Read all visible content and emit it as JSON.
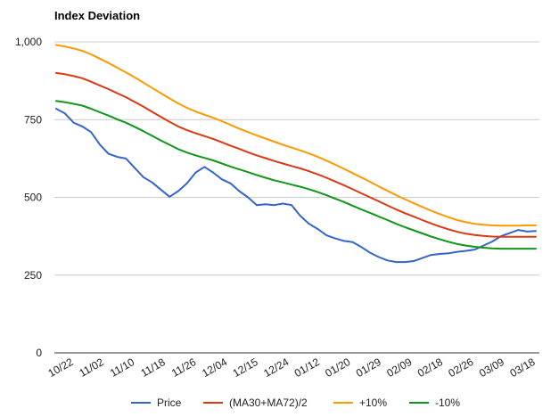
{
  "chart_data": {
    "type": "line",
    "title": "Index Deviation",
    "xlabel": "",
    "ylabel": "",
    "ylim": [
      0,
      1000
    ],
    "y_ticks": [
      "0",
      "250",
      "500",
      "750",
      "1,000"
    ],
    "y_tick_values": [
      0,
      250,
      500,
      750,
      1000
    ],
    "grid": true,
    "legend_position": "bottom",
    "x_tick_labels": [
      "10/22",
      "11/02",
      "11/10",
      "11/18",
      "11/26",
      "12/04",
      "12/15",
      "12/24",
      "01/12",
      "01/20",
      "01/29",
      "02/09",
      "02/18",
      "02/26",
      "03/09",
      "03/18"
    ],
    "series": [
      {
        "name": "Price",
        "color": "#3366cc",
        "values": [
          785,
          770,
          740,
          728,
          710,
          670,
          640,
          630,
          625,
          595,
          565,
          548,
          525,
          502,
          520,
          545,
          580,
          598,
          580,
          558,
          545,
          520,
          500,
          475,
          478,
          475,
          480,
          475,
          440,
          415,
          398,
          378,
          368,
          360,
          356,
          340,
          322,
          308,
          297,
          292,
          292,
          295,
          305,
          315,
          318,
          320,
          325,
          328,
          332,
          345,
          358,
          375,
          385,
          395,
          390,
          392
        ]
      },
      {
        "name": "(MA30+MA72)/2",
        "color": "#dc3912",
        "values": [
          900,
          896,
          890,
          883,
          872,
          860,
          848,
          835,
          822,
          807,
          792,
          775,
          759,
          743,
          728,
          716,
          706,
          697,
          688,
          677,
          666,
          656,
          645,
          635,
          626,
          617,
          609,
          601,
          593,
          584,
          574,
          563,
          551,
          539,
          526,
          513,
          500,
          487,
          474,
          461,
          449,
          438,
          427,
          416,
          406,
          397,
          389,
          383,
          379,
          376,
          374,
          373,
          373,
          373,
          373,
          373
        ]
      },
      {
        "name": "+10%",
        "color": "#ff9900",
        "values": [
          990,
          985,
          979,
          971,
          960,
          946,
          932,
          917,
          902,
          886,
          869,
          852,
          835,
          818,
          802,
          788,
          776,
          766,
          756,
          745,
          733,
          721,
          710,
          699,
          689,
          679,
          669,
          660,
          651,
          641,
          630,
          618,
          605,
          592,
          578,
          564,
          550,
          535,
          521,
          507,
          494,
          481,
          469,
          457,
          446,
          436,
          427,
          420,
          415,
          412,
          410,
          409,
          409,
          409,
          410,
          410
        ]
      },
      {
        "name": "-10%",
        "color": "#109618",
        "values": [
          810,
          806,
          801,
          795,
          785,
          774,
          763,
          751,
          740,
          727,
          713,
          698,
          683,
          669,
          655,
          644,
          635,
          627,
          619,
          609,
          599,
          590,
          581,
          572,
          563,
          555,
          548,
          541,
          534,
          526,
          517,
          507,
          496,
          485,
          473,
          461,
          450,
          438,
          427,
          415,
          404,
          394,
          384,
          374,
          365,
          357,
          350,
          345,
          341,
          338,
          336,
          335,
          335,
          335,
          335,
          335
        ]
      }
    ]
  }
}
